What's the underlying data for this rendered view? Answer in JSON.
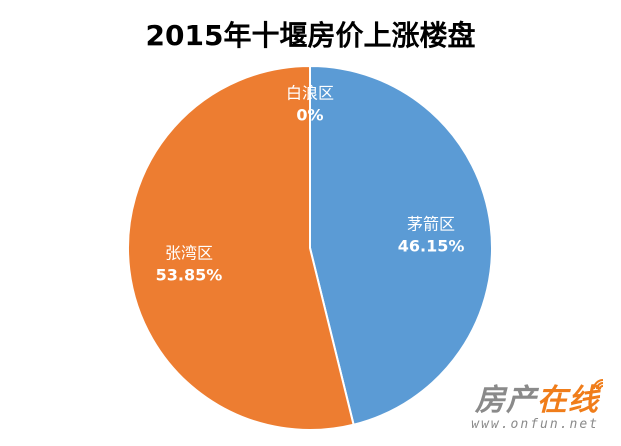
{
  "chart_data": {
    "type": "pie",
    "title": "2015年十堰房价上涨楼盘",
    "slices": [
      {
        "name": "茅箭区",
        "value": 46.15,
        "label": "46.15%",
        "color": "#5b9bd5"
      },
      {
        "name": "张湾区",
        "value": 53.85,
        "label": "53.85%",
        "color": "#ed7d31"
      },
      {
        "name": "白浪区",
        "value": 0,
        "label": "0%",
        "color": "#a5a5a5"
      }
    ],
    "legend": "none"
  },
  "watermark": {
    "brand_part1": "房产",
    "brand_part2": "在线",
    "url": "www.onfun.net",
    "icon": "wifi-signal-icon"
  }
}
